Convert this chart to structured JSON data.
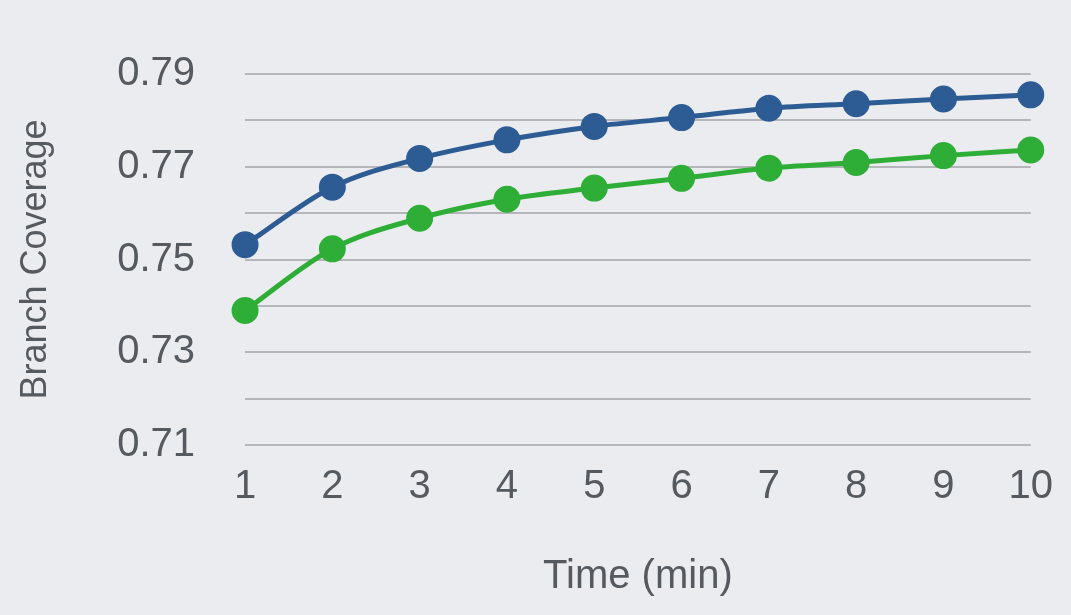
{
  "chart_data": {
    "type": "line",
    "xlabel": "Time (min)",
    "ylabel": "Branch Coverage",
    "categories": [
      "1",
      "2",
      "3",
      "4",
      "5",
      "6",
      "7",
      "8",
      "9",
      "10"
    ],
    "series": [
      {
        "color": "#2d5b94",
        "values": [
          0.7532,
          0.7656,
          0.7718,
          0.7758,
          0.7787,
          0.7806,
          0.7826,
          0.7836,
          0.7846,
          0.7855
        ]
      },
      {
        "color": "#2eae36",
        "values": [
          0.739,
          0.7523,
          0.7589,
          0.763,
          0.7654,
          0.7675,
          0.7697,
          0.7709,
          0.7724,
          0.7736
        ]
      }
    ],
    "ylim": [
      0.71,
      0.79
    ],
    "yticks": [
      0.71,
      {
        "value": 0.72,
        "label": null
      },
      0.73,
      {
        "value": 0.74,
        "label": null
      },
      0.75,
      {
        "value": 0.76,
        "label": null
      },
      0.77,
      {
        "value": 0.78,
        "label": null
      },
      0.79
    ],
    "grid": "y",
    "legend": false,
    "marker": "circle",
    "line_style": "solid"
  }
}
